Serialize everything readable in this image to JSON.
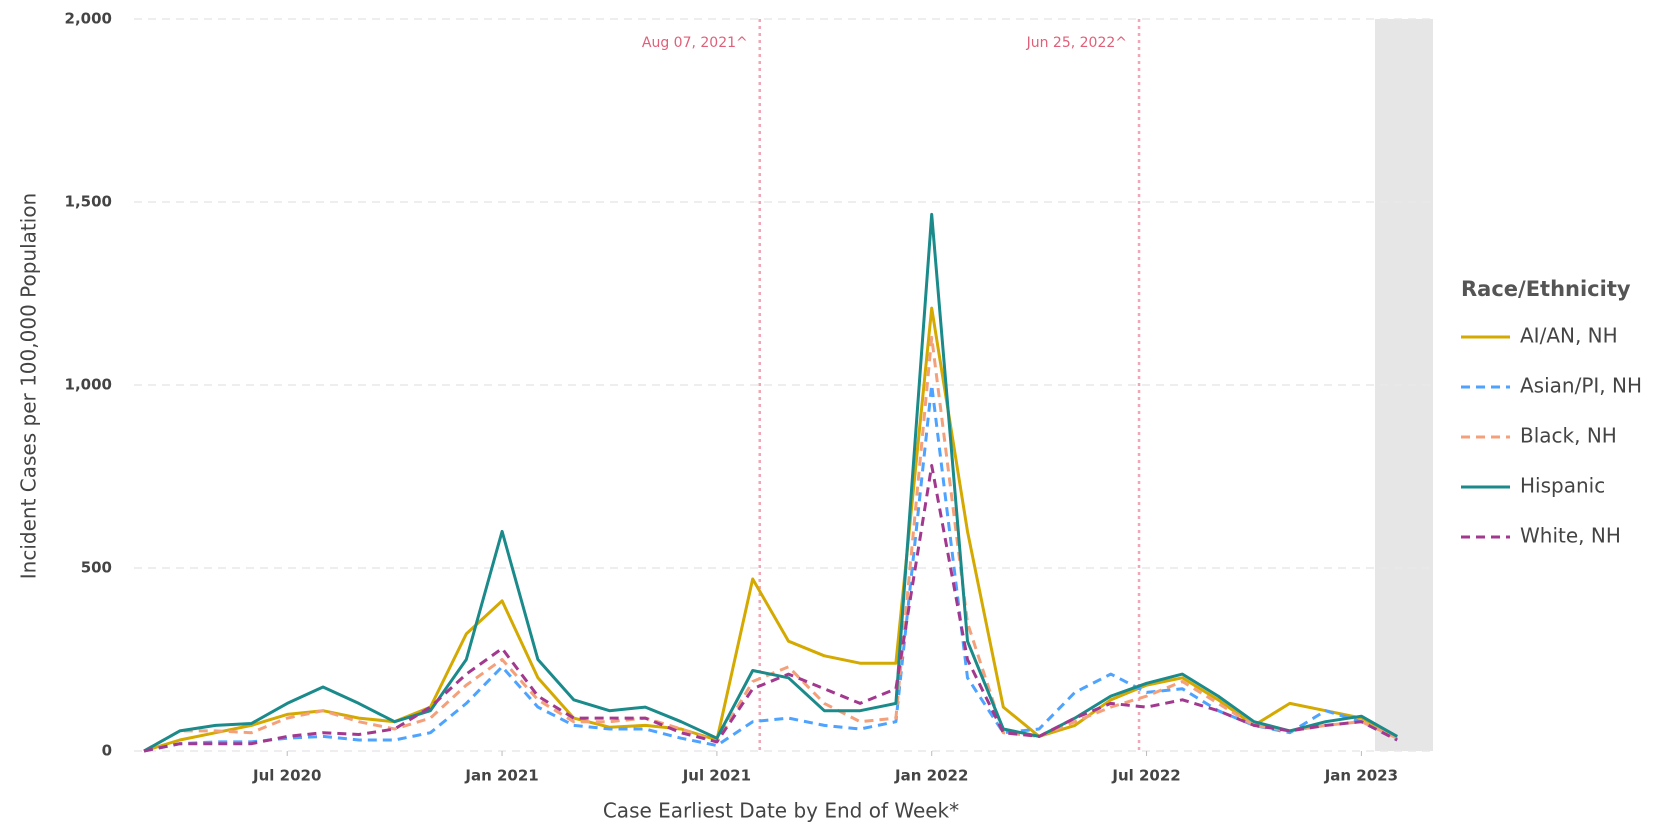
{
  "chart_data": {
    "type": "line",
    "x_label": "Case Earliest Date by End of Week*",
    "y_label": "Incident Cases per 100,000 Population",
    "legend_title": "Race/Ethnicity",
    "legend": "right",
    "grid": true,
    "x": [
      "2020-03",
      "2020-04",
      "2020-05",
      "2020-06",
      "2020-07",
      "2020-08",
      "2020-09",
      "2020-10",
      "2020-11",
      "2020-12",
      "2021-01",
      "2021-02",
      "2021-03",
      "2021-04",
      "2021-05",
      "2021-06",
      "2021-07",
      "2021-08",
      "2021-09",
      "2021-10",
      "2021-11",
      "2021-12",
      "2022-01",
      "2022-02",
      "2022-03",
      "2022-04",
      "2022-05",
      "2022-06",
      "2022-07",
      "2022-08",
      "2022-09",
      "2022-10",
      "2022-11",
      "2022-12",
      "2023-01",
      "2023-02"
    ],
    "xlim": [
      "2020-03",
      "2023-03"
    ],
    "xticks": [
      {
        "value": "2020-07",
        "label": "Jul 2020"
      },
      {
        "value": "2021-01",
        "label": "Jan 2021"
      },
      {
        "value": "2021-07",
        "label": "Jul 2021"
      },
      {
        "value": "2022-01",
        "label": "Jan 2022"
      },
      {
        "value": "2022-07",
        "label": "Jul 2022"
      },
      {
        "value": "2023-01",
        "label": "Jan 2023"
      }
    ],
    "ylim": [
      0,
      2000
    ],
    "yticks": [
      0,
      500,
      {
        "value": 1000,
        "label": "1,000"
      },
      {
        "value": 1500,
        "label": "1,500"
      },
      {
        "value": 2000,
        "label": "2,000"
      }
    ],
    "annotations": [
      {
        "x": "2021-08-07",
        "label": "Aug 07, 2021^"
      },
      {
        "x": "2022-06-25",
        "label": "Jun 25, 2022^"
      }
    ],
    "series": [
      {
        "name": "AI/AN, NH",
        "color": "#d4a900",
        "dashed": false,
        "values": [
          0,
          30,
          50,
          70,
          100,
          110,
          90,
          80,
          120,
          320,
          410,
          200,
          90,
          65,
          70,
          60,
          30,
          470,
          300,
          260,
          240,
          240,
          1210,
          600,
          120,
          40,
          70,
          140,
          180,
          200,
          140,
          70,
          130,
          110,
          90,
          40
        ]
      },
      {
        "name": "Asian/PI, NH",
        "color": "#4da3ff",
        "dashed": true,
        "values": [
          0,
          20,
          25,
          25,
          35,
          40,
          30,
          30,
          50,
          130,
          230,
          120,
          70,
          60,
          60,
          35,
          15,
          80,
          90,
          70,
          60,
          80,
          1000,
          200,
          50,
          60,
          160,
          210,
          160,
          170,
          110,
          70,
          50,
          110,
          80,
          30
        ]
      },
      {
        "name": "Black, NH",
        "color": "#f4a07a",
        "dashed": true,
        "values": [
          0,
          55,
          55,
          50,
          90,
          110,
          80,
          60,
          90,
          180,
          250,
          140,
          80,
          80,
          90,
          60,
          25,
          190,
          230,
          130,
          80,
          90,
          1130,
          350,
          50,
          40,
          80,
          120,
          150,
          190,
          130,
          70,
          55,
          70,
          80,
          35
        ]
      },
      {
        "name": "Hispanic",
        "color": "#1a8a8a",
        "dashed": false,
        "values": [
          0,
          55,
          70,
          75,
          130,
          175,
          130,
          80,
          110,
          250,
          600,
          250,
          140,
          110,
          120,
          80,
          35,
          220,
          200,
          110,
          110,
          130,
          1466,
          300,
          60,
          40,
          90,
          150,
          185,
          210,
          150,
          80,
          55,
          80,
          95,
          40
        ]
      },
      {
        "name": "White, NH",
        "color": "#a3388f",
        "dashed": true,
        "values": [
          0,
          20,
          20,
          20,
          40,
          50,
          45,
          60,
          120,
          210,
          280,
          150,
          90,
          90,
          90,
          50,
          25,
          170,
          210,
          170,
          130,
          170,
          780,
          250,
          50,
          40,
          90,
          130,
          120,
          140,
          110,
          70,
          55,
          70,
          80,
          30
        ]
      }
    ]
  }
}
